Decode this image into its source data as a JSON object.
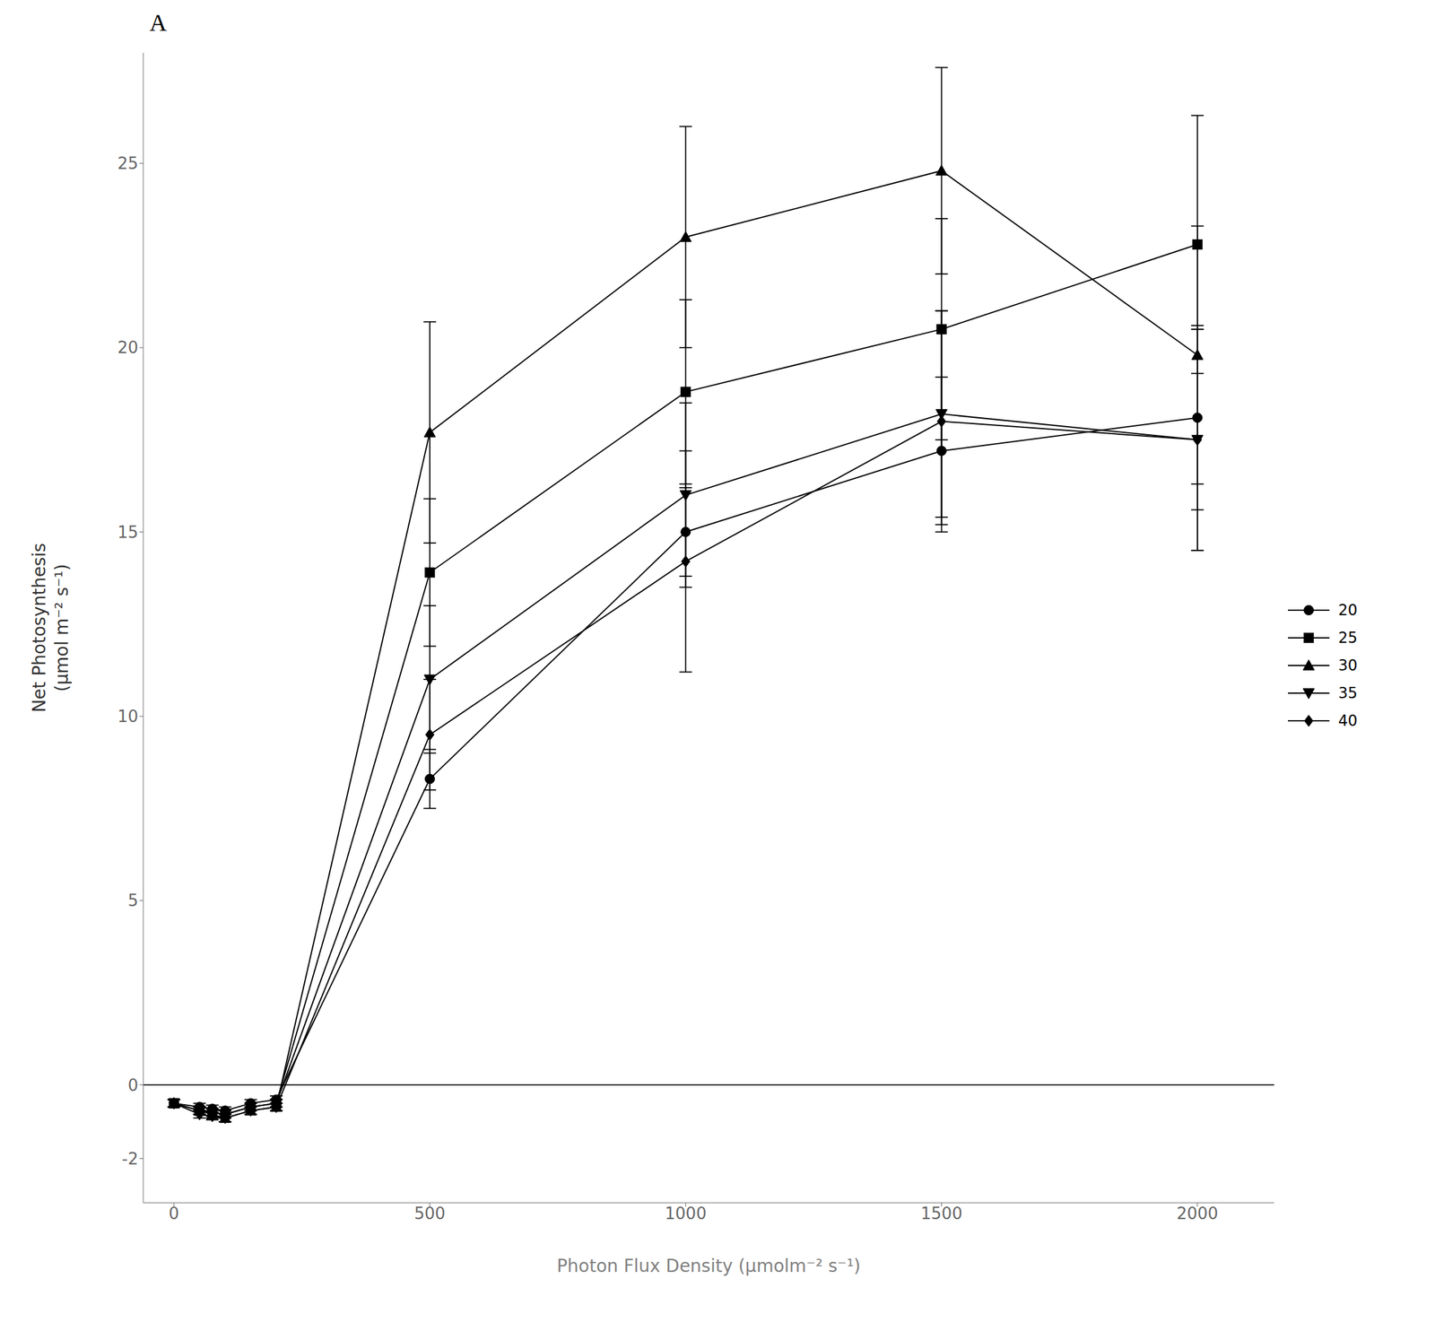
{
  "chart_data": {
    "type": "line",
    "title": "A",
    "xlabel": "Photon Flux Density (μmolm⁻² s⁻¹)",
    "ylabel": "Net Photosynthesis\n(μmol m⁻² s⁻¹)",
    "x": [
      0,
      50,
      75,
      100,
      150,
      200,
      500,
      1000,
      1500,
      2000
    ],
    "xlim": [
      -60,
      2150
    ],
    "ylim": [
      -3.2,
      28
    ],
    "xticks": [
      0,
      500,
      1000,
      1500,
      2000
    ],
    "yticks": [
      -2,
      0,
      5,
      10,
      15,
      20,
      25
    ],
    "hline": 0,
    "grid": false,
    "legend": "right",
    "series": [
      {
        "name": "20",
        "color": "black",
        "marker": "circle",
        "values": [
          -0.5,
          -0.6,
          -0.65,
          -0.7,
          -0.5,
          -0.4,
          8.3,
          15.0,
          17.2,
          18.1
        ],
        "yerr": [
          0.1,
          0.1,
          0.1,
          0.1,
          0.1,
          0.1,
          0.8,
          1.2,
          2.0,
          2.5
        ]
      },
      {
        "name": "25",
        "color": "black",
        "marker": "square",
        "values": [
          -0.5,
          -0.7,
          -0.75,
          -0.8,
          -0.6,
          -0.5,
          13.9,
          18.8,
          20.5,
          22.8
        ],
        "yerr": [
          0.1,
          0.1,
          0.1,
          0.1,
          0.1,
          0.1,
          2.0,
          2.5,
          3.0,
          3.5
        ]
      },
      {
        "name": "30",
        "color": "black",
        "marker": "triangle",
        "values": [
          -0.5,
          -0.7,
          -0.8,
          -0.9,
          -0.7,
          -0.6,
          17.7,
          23.0,
          24.8,
          19.8
        ],
        "yerr": [
          0.1,
          0.1,
          0.1,
          0.1,
          0.1,
          0.1,
          3.0,
          3.0,
          2.8,
          3.5
        ]
      },
      {
        "name": "35",
        "color": "black",
        "marker": "triangle-down",
        "values": [
          -0.5,
          -0.7,
          -0.75,
          -0.8,
          -0.6,
          -0.5,
          11.0,
          16.0,
          18.2,
          17.5
        ],
        "yerr": [
          0.1,
          0.1,
          0.1,
          0.1,
          0.1,
          0.1,
          2.0,
          2.5,
          2.8,
          3.0
        ]
      },
      {
        "name": "40",
        "color": "black",
        "marker": "diamond",
        "values": [
          -0.5,
          -0.8,
          -0.85,
          -0.9,
          -0.7,
          -0.6,
          9.5,
          14.2,
          18.0,
          17.5
        ],
        "yerr": [
          0.1,
          0.1,
          0.1,
          0.1,
          0.1,
          0.1,
          1.5,
          3.0,
          3.0,
          3.0
        ]
      }
    ]
  }
}
